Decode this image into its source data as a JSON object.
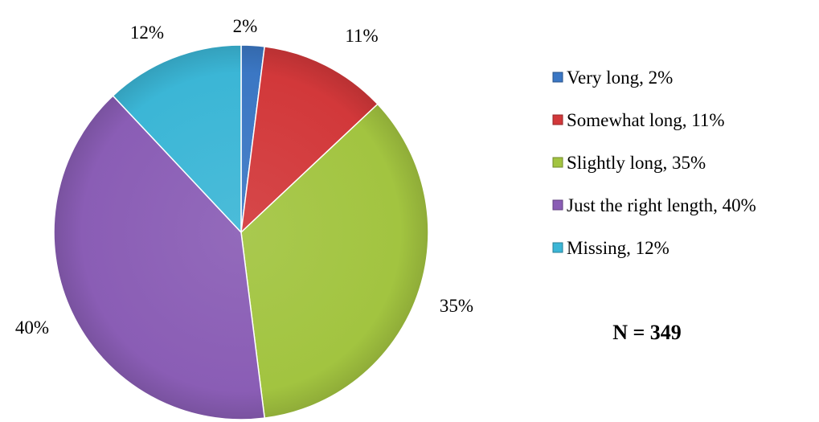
{
  "chart_data": {
    "type": "pie",
    "title": "",
    "categories": [
      "Very long",
      "Somewhat long",
      "Slightly long",
      "Just the right length",
      "Missing"
    ],
    "values": [
      2,
      11,
      35,
      40,
      12
    ],
    "data_labels": [
      "2%",
      "11%",
      "35%",
      "40%",
      "12%"
    ],
    "legend_entries": [
      "Very long, 2%",
      "Somewhat long, 11%",
      "Slightly long, 35%",
      "Just the right length, 40%",
      "Missing, 12%"
    ],
    "colors": [
      "#3b77c4",
      "#d2383a",
      "#a2c440",
      "#8a5db5",
      "#3bb6d6"
    ],
    "start_angle": "12 o'clock",
    "direction": "clockwise",
    "legend_position": "right",
    "annotation": "N = 349"
  }
}
